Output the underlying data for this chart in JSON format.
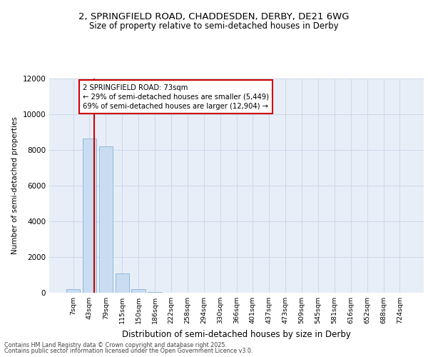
{
  "title_line1": "2, SPRINGFIELD ROAD, CHADDESDEN, DERBY, DE21 6WG",
  "title_line2": "Size of property relative to semi-detached houses in Derby",
  "xlabel": "Distribution of semi-detached houses by size in Derby",
  "ylabel": "Number of semi-detached properties",
  "categories": [
    "7sqm",
    "43sqm",
    "79sqm",
    "115sqm",
    "150sqm",
    "186sqm",
    "222sqm",
    "258sqm",
    "294sqm",
    "330sqm",
    "366sqm",
    "401sqm",
    "437sqm",
    "473sqm",
    "509sqm",
    "545sqm",
    "581sqm",
    "616sqm",
    "652sqm",
    "688sqm",
    "724sqm"
  ],
  "values": [
    200,
    8650,
    8200,
    1100,
    200,
    50,
    0,
    0,
    0,
    0,
    0,
    0,
    0,
    0,
    0,
    0,
    0,
    0,
    0,
    0,
    0
  ],
  "bar_color": "#c9ddf2",
  "bar_edge_color": "#90b8d8",
  "property_name": "2 SPRINGFIELD ROAD: 73sqm",
  "pct_smaller": 29,
  "pct_larger": 69,
  "n_smaller": "5,449",
  "n_larger": "12,904",
  "annotation_box_color": "#ffffff",
  "annotation_box_edge_color": "#cc0000",
  "red_line_color": "#cc0000",
  "ylim": [
    0,
    12000
  ],
  "yticks": [
    0,
    2000,
    4000,
    6000,
    8000,
    10000,
    12000
  ],
  "grid_color": "#cdd8e8",
  "bg_color": "#e8eef8",
  "footer_line1": "Contains HM Land Registry data © Crown copyright and database right 2025.",
  "footer_line2": "Contains public sector information licensed under the Open Government Licence v3.0."
}
